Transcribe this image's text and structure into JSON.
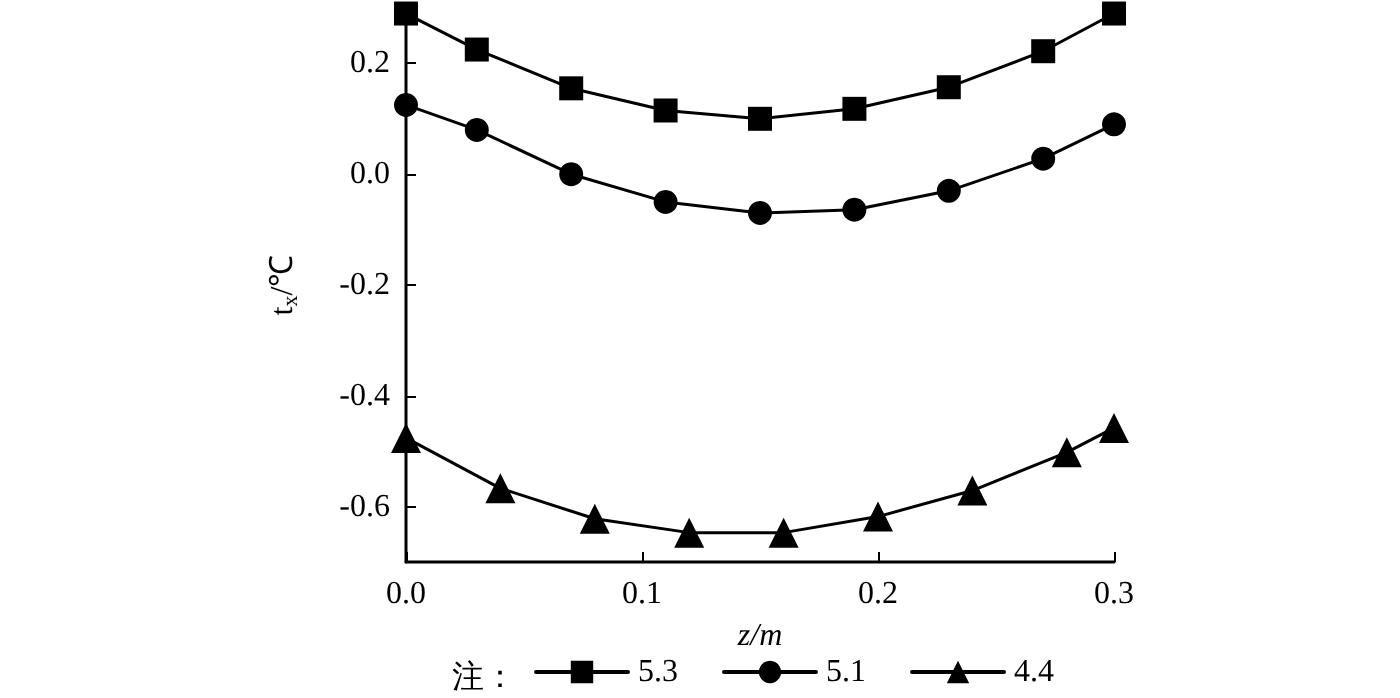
{
  "chart_data": {
    "type": "line",
    "xlabel": "z/m",
    "ylabel": "t$_{x}$/℃",
    "legend_title": "注：",
    "legend": "bottom",
    "line_style": "solid",
    "xlim": [
      0,
      0.3
    ],
    "xticks": [
      {
        "value": 0,
        "label": "0.0"
      },
      0.1,
      0.2,
      0.3
    ],
    "ylim": [
      -0.7,
      0.3
    ],
    "yticks": [
      -0.6,
      -0.4,
      -0.2,
      {
        "value": 0,
        "label": "0.0"
      },
      0.2
    ],
    "series": [
      {
        "name": "5.3",
        "color": "#000000",
        "marker": "square",
        "x": [
          0,
          0.03,
          0.07,
          0.11,
          0.15,
          0.19,
          0.23,
          0.27,
          0.3
        ],
        "values": [
          0.29,
          0.225,
          0.155,
          0.115,
          0.1,
          0.118,
          0.157,
          0.222,
          0.29
        ]
      },
      {
        "name": "5.1",
        "color": "#000000",
        "marker": "circle",
        "x": [
          0,
          0.03,
          0.07,
          0.11,
          0.15,
          0.19,
          0.23,
          0.27,
          0.3
        ],
        "values": [
          0.125,
          0.08,
          0,
          -0.05,
          -0.07,
          -0.064,
          -0.03,
          0.028,
          0.09
        ]
      },
      {
        "name": "4.4",
        "color": "#000000",
        "marker": "triangle",
        "x": [
          0,
          0.04,
          0.08,
          0.12,
          0.16,
          0.2,
          0.24,
          0.28,
          0.3
        ],
        "values": [
          -0.476,
          -0.567,
          -0.622,
          -0.647,
          -0.647,
          -0.618,
          -0.571,
          -0.502,
          -0.458
        ]
      }
    ]
  }
}
